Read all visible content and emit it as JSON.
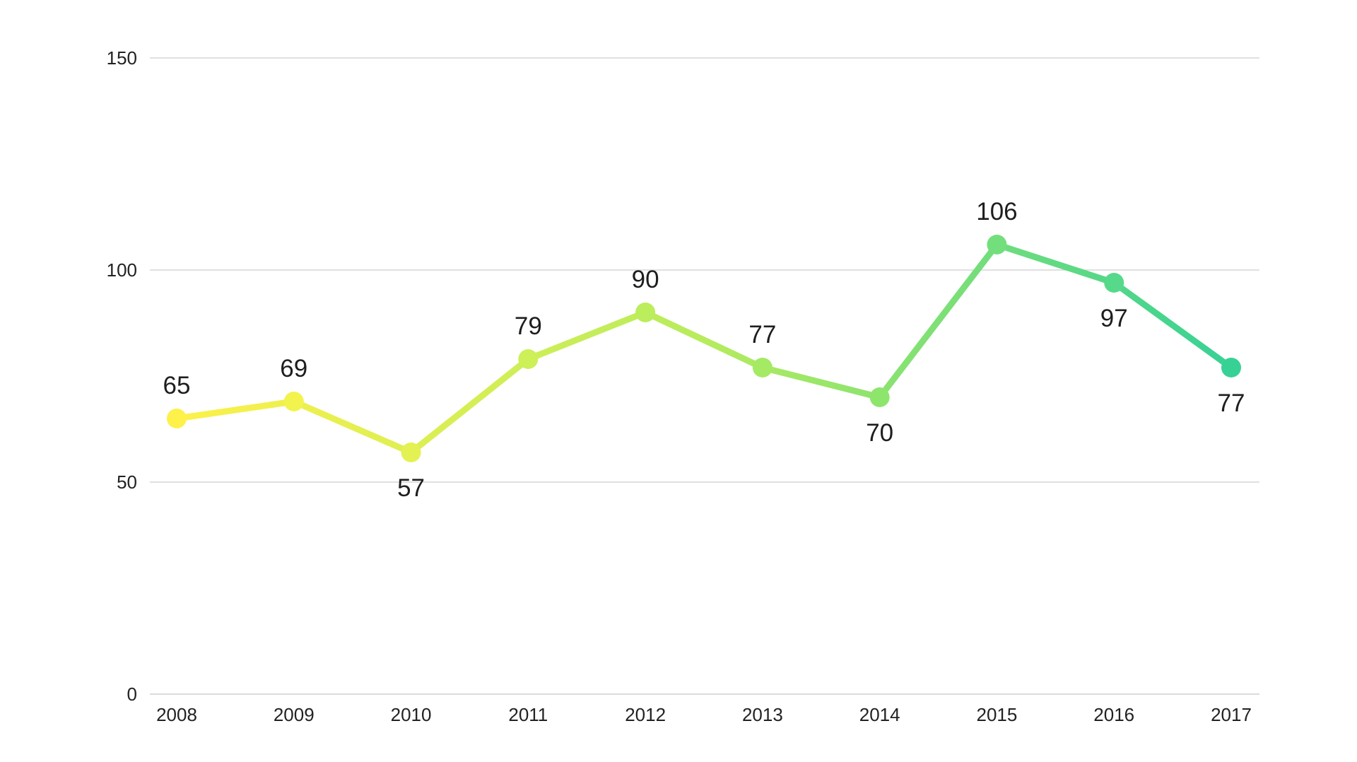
{
  "chart_data": {
    "type": "line",
    "categories": [
      "2008",
      "2009",
      "2010",
      "2011",
      "2012",
      "2013",
      "2014",
      "2015",
      "2016",
      "2017"
    ],
    "series": [
      {
        "values": [
          65,
          69,
          57,
          79,
          90,
          77,
          70,
          106,
          97,
          77
        ]
      }
    ],
    "yticks": [
      "0",
      "50",
      "100",
      "150"
    ],
    "ylim": [
      0,
      150
    ],
    "title": "",
    "xlabel": "",
    "ylabel": "",
    "grid": "horizontal",
    "legend": "none",
    "colors": {
      "gradient_start": "#fdf14a",
      "gradient_mid": "#b6ec5d",
      "gradient_end": "#37d196",
      "point_colors": [
        "#fdf14a",
        "#f3f34e",
        "#e3f152",
        "#cdef58",
        "#bbed5c",
        "#a4ea64",
        "#8ee56c",
        "#72df7c",
        "#56d98a",
        "#37d196"
      ]
    },
    "label_positions": [
      "above",
      "above",
      "below",
      "above",
      "above",
      "above",
      "below",
      "above",
      "below",
      "below"
    ]
  }
}
